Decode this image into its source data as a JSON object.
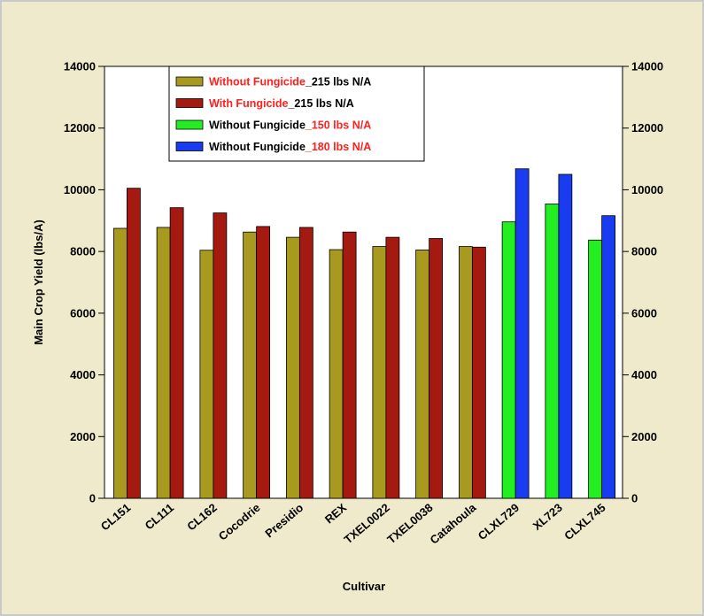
{
  "chart_data": {
    "type": "bar",
    "xlabel": "Cultivar",
    "ylabel": "Main Crop Yield (lbs/A)",
    "ylim": [
      0,
      14000
    ],
    "yticks": [
      0,
      2000,
      4000,
      6000,
      8000,
      10000,
      12000,
      14000
    ],
    "right_axis": true,
    "grid": false,
    "legend_position": "top-left",
    "categories": [
      "CL151",
      "CL111",
      "CL162",
      "Cocodrie",
      "Presidio",
      "REX",
      "TXEL0022",
      "TXEL0038",
      "Catahoula",
      "CLXL729",
      "XL723",
      "CLXL745"
    ],
    "series": [
      {
        "key": "wo215",
        "legend_parts": [
          {
            "text": "Without Fungicide",
            "color": "#ff2020"
          },
          {
            "text": "_215 lbs N/A",
            "color": "#000000"
          }
        ],
        "color": "#a89a1e",
        "values": [
          8750,
          8780,
          8040,
          8630,
          8460,
          8060,
          8160,
          8050,
          8160,
          null,
          null,
          null
        ]
      },
      {
        "key": "w215",
        "legend_parts": [
          {
            "text": "With Fungicide",
            "color": "#ff2020"
          },
          {
            "text": "_215 lbs N/A",
            "color": "#000000"
          }
        ],
        "color": "#a41a10",
        "values": [
          10050,
          9420,
          9250,
          8810,
          8780,
          8630,
          8460,
          8420,
          8140,
          null,
          null,
          null
        ]
      },
      {
        "key": "wo150",
        "legend_parts": [
          {
            "text": "Without Fungicide",
            "color": "#000000"
          },
          {
            "text": "_150 lbs N/A",
            "color": "#ff2020"
          }
        ],
        "color": "#22ee22",
        "values": [
          null,
          null,
          null,
          null,
          null,
          null,
          null,
          null,
          null,
          8960,
          9540,
          8370
        ]
      },
      {
        "key": "wo180",
        "legend_parts": [
          {
            "text": "Without Fungicide",
            "color": "#000000"
          },
          {
            "text": "_180 lbs N/A",
            "color": "#ff2020"
          }
        ],
        "color": "#1a3cf0",
        "values": [
          null,
          null,
          null,
          null,
          null,
          null,
          null,
          null,
          null,
          10680,
          10500,
          9160
        ]
      }
    ]
  },
  "colors": {
    "outer_background": "#eeeacb",
    "plot_background": "#ffffff"
  }
}
